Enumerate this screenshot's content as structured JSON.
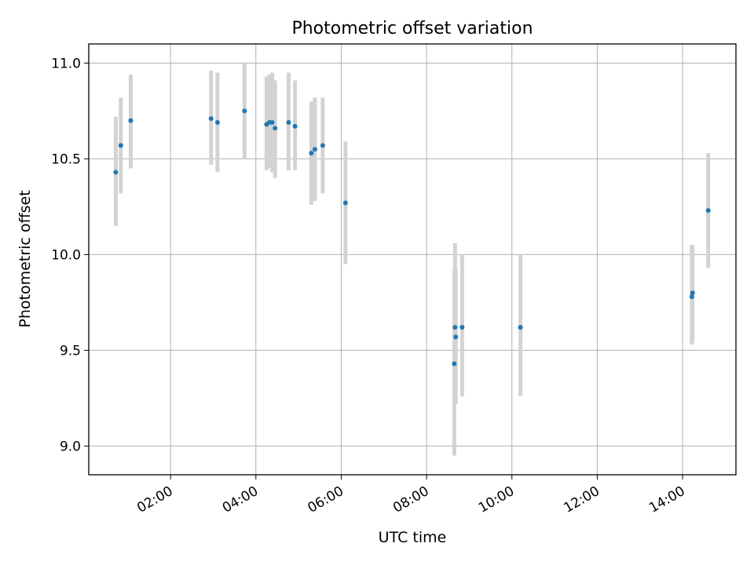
{
  "chart_data": {
    "type": "scatter",
    "title": "Photometric offset variation",
    "xlabel": "UTC time",
    "ylabel": "Photometric offset",
    "xlim": [
      "00:05",
      "15:15"
    ],
    "ylim": [
      8.85,
      11.1
    ],
    "xticks": [
      "02:00",
      "04:00",
      "06:00",
      "08:00",
      "10:00",
      "12:00",
      "14:00"
    ],
    "yticks": [
      9.0,
      9.5,
      10.0,
      10.5,
      11.0
    ],
    "ytick_labels": [
      "9.0",
      "9.5",
      "10.0",
      "10.5",
      "11.0"
    ],
    "grid": true,
    "point_color": "#1f77b4",
    "errorbar_color": "#d3d3d3",
    "points": [
      {
        "x": "00:43",
        "y": 10.43,
        "ylow": 10.15,
        "yhigh": 10.72
      },
      {
        "x": "00:50",
        "y": 10.57,
        "ylow": 10.32,
        "yhigh": 10.82
      },
      {
        "x": "01:04",
        "y": 10.7,
        "ylow": 10.45,
        "yhigh": 10.94
      },
      {
        "x": "02:57",
        "y": 10.71,
        "ylow": 10.47,
        "yhigh": 10.96
      },
      {
        "x": "03:06",
        "y": 10.69,
        "ylow": 10.43,
        "yhigh": 10.95
      },
      {
        "x": "03:44",
        "y": 10.75,
        "ylow": 10.5,
        "yhigh": 11.0
      },
      {
        "x": "04:15",
        "y": 10.68,
        "ylow": 10.44,
        "yhigh": 10.93
      },
      {
        "x": "04:19",
        "y": 10.69,
        "ylow": 10.45,
        "yhigh": 10.94
      },
      {
        "x": "04:23",
        "y": 10.69,
        "ylow": 10.43,
        "yhigh": 10.95
      },
      {
        "x": "04:27",
        "y": 10.66,
        "ylow": 10.4,
        "yhigh": 10.91
      },
      {
        "x": "04:46",
        "y": 10.69,
        "ylow": 10.44,
        "yhigh": 10.95
      },
      {
        "x": "04:55",
        "y": 10.67,
        "ylow": 10.44,
        "yhigh": 10.91
      },
      {
        "x": "05:18",
        "y": 10.53,
        "ylow": 10.26,
        "yhigh": 10.8
      },
      {
        "x": "05:23",
        "y": 10.55,
        "ylow": 10.28,
        "yhigh": 10.82
      },
      {
        "x": "05:34",
        "y": 10.57,
        "ylow": 10.32,
        "yhigh": 10.82
      },
      {
        "x": "06:06",
        "y": 10.27,
        "ylow": 9.95,
        "yhigh": 10.59
      },
      {
        "x": "08:39",
        "y": 9.43,
        "ylow": 8.95,
        "yhigh": 9.92
      },
      {
        "x": "08:40",
        "y": 9.62,
        "ylow": 9.23,
        "yhigh": 10.06
      },
      {
        "x": "08:41",
        "y": 9.57,
        "ylow": 9.22,
        "yhigh": 9.93
      },
      {
        "x": "08:50",
        "y": 9.62,
        "ylow": 9.26,
        "yhigh": 10.0
      },
      {
        "x": "10:12",
        "y": 9.62,
        "ylow": 9.26,
        "yhigh": 10.0
      },
      {
        "x": "14:13",
        "y": 9.78,
        "ylow": 9.53,
        "yhigh": 10.05
      },
      {
        "x": "14:14",
        "y": 9.8,
        "ylow": 9.55,
        "yhigh": 10.05
      },
      {
        "x": "14:36",
        "y": 10.23,
        "ylow": 9.93,
        "yhigh": 10.53
      }
    ]
  }
}
